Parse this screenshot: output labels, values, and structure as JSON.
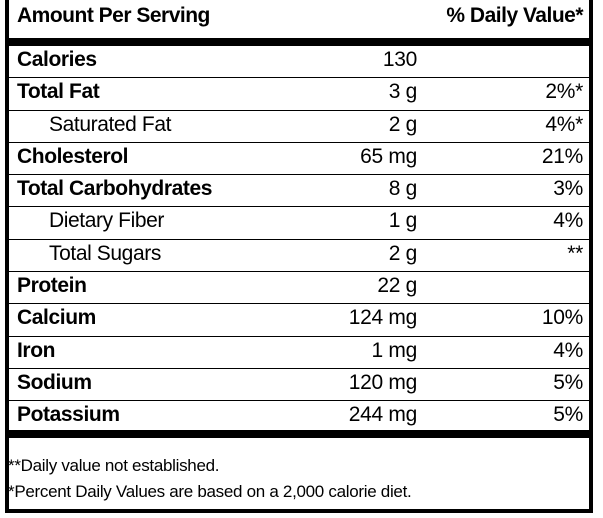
{
  "header": {
    "amount_label": "Amount Per Serving",
    "dv_label": "% Daily Value*"
  },
  "rows": [
    {
      "label": "Calories",
      "amount": "130",
      "dv": "",
      "bold": true,
      "sub": false
    },
    {
      "label": "Total Fat",
      "amount": "3 g",
      "dv": "2%*",
      "bold": true,
      "sub": false
    },
    {
      "label": "Saturated Fat",
      "amount": "2 g",
      "dv": "4%*",
      "bold": false,
      "sub": true
    },
    {
      "label": "Cholesterol",
      "amount": "65 mg",
      "dv": "21%",
      "bold": true,
      "sub": false
    },
    {
      "label": "Total Carbohydrates",
      "amount": "8 g",
      "dv": "3%",
      "bold": true,
      "sub": false
    },
    {
      "label": "Dietary Fiber",
      "amount": "1 g",
      "dv": "4%",
      "bold": false,
      "sub": true
    },
    {
      "label": "Total Sugars",
      "amount": "2 g",
      "dv": "**",
      "bold": false,
      "sub": true
    },
    {
      "label": "Protein",
      "amount": "22 g",
      "dv": "",
      "bold": true,
      "sub": false
    },
    {
      "label": "Calcium",
      "amount": "124 mg",
      "dv": "10%",
      "bold": true,
      "sub": false
    },
    {
      "label": "Iron",
      "amount": "1 mg",
      "dv": "4%",
      "bold": true,
      "sub": false
    },
    {
      "label": "Sodium",
      "amount": "120 mg",
      "dv": "5%",
      "bold": true,
      "sub": false
    },
    {
      "label": "Potassium",
      "amount": "244 mg",
      "dv": "5%",
      "bold": true,
      "sub": false
    }
  ],
  "footnotes": {
    "note1": "**Daily value not established.",
    "note2": "*Percent Daily Values are based on a 2,000 calorie diet."
  }
}
